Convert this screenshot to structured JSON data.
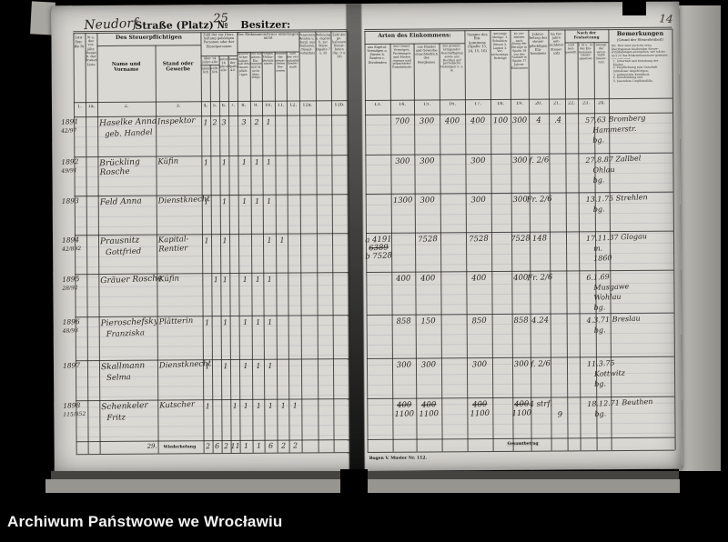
{
  "archive_bar": {
    "label": "Archiwum Państwowe we Wrocławiu"
  },
  "scan": {
    "page_number": "14",
    "title": {
      "street_hw": "Neudorf",
      "street_label": "Straße (Platz) №",
      "house_no_hw": "25",
      "owner_label": "Besitzer:"
    },
    "left": {
      "col1": "Lau- fen- de №",
      "col2": "№ a. der vor- jähr. Steuer- b. der Brauer- Liste",
      "taxpayer_group": "Des Steuerpflichtigen",
      "name_col": "Name und Vorname",
      "stand_col": "Stand oder Gewerbe",
      "persons_group": "Zahl der zur Haus- haltung gehörigen Personen oder der Einzelpersonen",
      "over14": "über 14 Jahre alte",
      "p_male": "männ- lich",
      "p_female": "weib- lich",
      "p_under14": "unter 14 Jahren alte",
      "p_sum": "Summe der Spalten 4-6",
      "free_group": "Der Einkommensteuer unterliegen nicht",
      "free_cols": [
        "gewöhn- licher Aufent- halt des Steuer- pflich- tigen",
        "weil das Jahres- Ein- kommen 420 M nicht über- steigt",
        "wegen Militär- Verhält- nisses",
        "Summe der steuer- freien Per- sonen",
        "Zahl der ver- anlagten Steuer- stufe"
      ],
      "end_cols": [
        "Pensionen, Renten u. dergl. aus früherem Dienst- verhältnis",
        "Wohnung a. eigene b. zur Miete (Spalte 7 u. 8)",
        "Zahl der ge- haltenen Dienst- boten (Sp. 9 u. 10)"
      ],
      "numbers": [
        "1.",
        "1a.",
        "2.",
        "3.",
        "4.",
        "5.",
        "6.",
        "7.",
        "8.",
        "9.",
        "10.",
        "11.",
        "12.",
        "12a.",
        "12b."
      ],
      "summary_no_hw": "29.",
      "summary_label": "Wiederholung",
      "summary_persons": [
        "2",
        "6",
        "2",
        "11"
      ],
      "summary_free": [
        "1",
        "1",
        "6",
        "2",
        "2"
      ]
    },
    "right": {
      "income_group": "Arten des Einkommens:",
      "c13": "aus Kapital- Vermögen a. Zinsen b. Renten c. Dividenden",
      "c14": "aus Grund- Vermögen, Pachtungen und Mieten eigener und gepachteter Grundstücke",
      "c15": "aus Handel und Gewerbe einschließlich des Bergbaues",
      "c16": "aus gewinn- bringender Beschäftigung sowie aus Rechten auf periodische Hebungen u. s. w.",
      "c17": "Summe des Ein- kommens (Spalte 13, 14, 15, 16)",
      "c18": "Anteilige Abzüge: 1. Schulden- Zinsen 2. Lasten 3. Ver- sicherungs- Beiträge",
      "c19": "Es ver- bleiben nach Abzug der Beträge in Spalte 18 von der Summe in Spalte 17 Jahres- Einkommen",
      "c20": "Jahres- betrag des steuer- pflichtigen Ein- kommens",
      "c21": "Im Vor- jahre ent- richteter Steuer- satz",
      "fest_group": "Nach der Festsetzung",
      "fest_cols": [
        "sind fest- gestellt",
        "§ 18 u. 19 des Ein- kommen- steuer- gesetzes",
        "beträgt der veran- lagte Steuer- satz"
      ],
      "bem_title": "Bemerkungen",
      "bem_sub": "(Grund der Steuerfreiheit)",
      "bem_nb": "NB. Hier sind auch die etwa übertragenen bleibenden Steuer-ermäßigungen anzugeben, wie solche im § 22 des Einkommensteuer-gesetzes genannt sind:",
      "bem_items": [
        "1. Unterhalt und Erziehung der Kinder;",
        "2. Verpflichtung zum Unterhalt mittelloser Angehörigen;",
        "3. andauernde Krankheit;",
        "4. Verschuldung und",
        "5. besondere Unglücksfälle."
      ],
      "numbers": [
        "13.",
        "14.",
        "15.",
        "16.",
        "17.",
        "18.",
        "19.",
        "20.",
        "21.",
        "22.",
        "23.",
        "24."
      ],
      "gesamtbetrag_label": "Gesamtbetrag",
      "form_label": "Bogen V. Muster Nr. 112."
    },
    "rows": [
      {
        "no": "1891",
        "no2": "42/97",
        "name": "Haselke Anna",
        "name2": "geb. Handel",
        "stand": "Inspektor",
        "persons": [
          "1",
          "2",
          "3",
          ""
        ],
        "free": [
          "3",
          "2",
          "1",
          "",
          ""
        ],
        "vals": [
          [
            "c14",
            "700"
          ],
          [
            "c15",
            "300"
          ],
          [
            "c16",
            "400"
          ],
          [
            "c17",
            "400"
          ],
          [
            "c18",
            "100"
          ],
          [
            "c19",
            "300"
          ],
          [
            "c20",
            "4"
          ],
          [
            "c21",
            ".4"
          ]
        ],
        "remark": [
          "57.63 Bromberg",
          "Hammerstr.",
          "bg."
        ]
      },
      {
        "no": "1892",
        "no2": "49/91",
        "name": "Brückling Rosche",
        "name2": "",
        "stand": "Küfin",
        "persons": [
          "1",
          "",
          "1",
          ""
        ],
        "free": [
          "1",
          "1",
          "1",
          "",
          ""
        ],
        "vals": [
          [
            "c14",
            "300"
          ],
          [
            "c15",
            "300"
          ],
          [
            "c17",
            "300"
          ],
          [
            "c19",
            "300"
          ],
          [
            "c20",
            "f. 2/6"
          ]
        ],
        "remark": [
          "27.8.87 Zallbel",
          "Ohlau",
          "bg."
        ]
      },
      {
        "no": "1893",
        "no2": "",
        "name": "Feld Anna",
        "name2": "",
        "stand": "Dienstknecht",
        "persons": [
          "1",
          "",
          "1",
          ""
        ],
        "free": [
          "1",
          "1",
          "1",
          "",
          ""
        ],
        "vals": [
          [
            "c14",
            "1300"
          ],
          [
            "c15",
            "300"
          ],
          [
            "c17",
            "300"
          ],
          [
            "c19",
            "300"
          ],
          [
            "c20",
            "Fr. 2/6"
          ]
        ],
        "remark": [
          "13.1.75 Strehlen",
          "bg."
        ]
      },
      {
        "no": "1894",
        "no2": "42/892",
        "name": "Prausnitz",
        "name2": "Gottfried",
        "stand": "Kapital-Rentier",
        "persons": [
          "1",
          "",
          "1",
          ""
        ],
        "free": [
          "",
          "",
          "1",
          "1",
          ""
        ],
        "vals": [
          [
            "c13",
            "a 4191"
          ],
          [
            "c13",
            "6389",
            9,
            true
          ],
          [
            "c13",
            "b 7528",
            18
          ],
          [
            "c15",
            "7528"
          ],
          [
            "c17",
            "7528"
          ],
          [
            "c19",
            "7528"
          ],
          [
            "c20",
            "148"
          ]
        ],
        "remark": [
          "17.11.37 Glogau",
          "m.",
          "1860"
        ]
      },
      {
        "no": "1895",
        "no2": "28/92",
        "name": "Gräuer Rosche",
        "name2": "",
        "stand": "Küfin",
        "persons": [
          "",
          "1",
          "1",
          ""
        ],
        "free": [
          "1",
          "1",
          "1",
          "",
          ""
        ],
        "vals": [
          [
            "c14",
            "400"
          ],
          [
            "c15",
            "400"
          ],
          [
            "c17",
            "400"
          ],
          [
            "c19",
            "400"
          ],
          [
            "c20",
            "Fr. 2/6"
          ]
        ],
        "remark": [
          "6.1.69",
          "Musgawe",
          "Wohlau",
          "bg."
        ]
      },
      {
        "no": "1896",
        "no2": "48/93",
        "name": "Pieroschefsky",
        "name2": "Franziska",
        "stand": "Plätterin",
        "persons": [
          "1",
          "",
          "1",
          ""
        ],
        "free": [
          "1",
          "1",
          "1",
          "",
          ""
        ],
        "vals": [
          [
            "c14",
            "858"
          ],
          [
            "c15",
            "150"
          ],
          [
            "c17",
            "850"
          ],
          [
            "c19",
            "858"
          ],
          [
            "c20",
            "4.24"
          ]
        ],
        "remark": [
          "4.3.71 Breslau",
          "bg."
        ]
      },
      {
        "no": "1897",
        "no2": "",
        "name": "Skallmann",
        "name2": "Selma",
        "stand": "Dienstknecht",
        "persons": [
          "1",
          "",
          "1",
          ""
        ],
        "free": [
          "1",
          "1",
          "1",
          "",
          ""
        ],
        "vals": [
          [
            "c14",
            "300"
          ],
          [
            "c15",
            "300"
          ],
          [
            "c17",
            "300"
          ],
          [
            "c19",
            "300"
          ],
          [
            "c20",
            "f. 2/6"
          ]
        ],
        "remark": [
          "11.3.75",
          "Kottwitz",
          "bg."
        ]
      },
      {
        "no": "1898",
        "no2": "115/852",
        "name": "Schenkeler",
        "name2": "Fritz",
        "stand": "Kutscher",
        "persons": [
          "1",
          "",
          "",
          "1"
        ],
        "free": [
          "1",
          "1",
          "1",
          "1",
          "1"
        ],
        "vals": [
          [
            "c14",
            "400",
            0,
            true
          ],
          [
            "c14",
            "1100",
            10
          ],
          [
            "c15",
            "400",
            0,
            true
          ],
          [
            "c15",
            "1100",
            10
          ],
          [
            "c17",
            "400",
            0,
            true
          ],
          [
            "c17",
            "1100",
            10
          ],
          [
            "c19",
            "400",
            0,
            true
          ],
          [
            "c19",
            "1100",
            10
          ],
          [
            "c20",
            "4 strf."
          ],
          [
            "c21",
            "9",
            12
          ]
        ],
        "remark": [
          "18.12.71 Beuthen",
          "bg."
        ]
      }
    ]
  }
}
